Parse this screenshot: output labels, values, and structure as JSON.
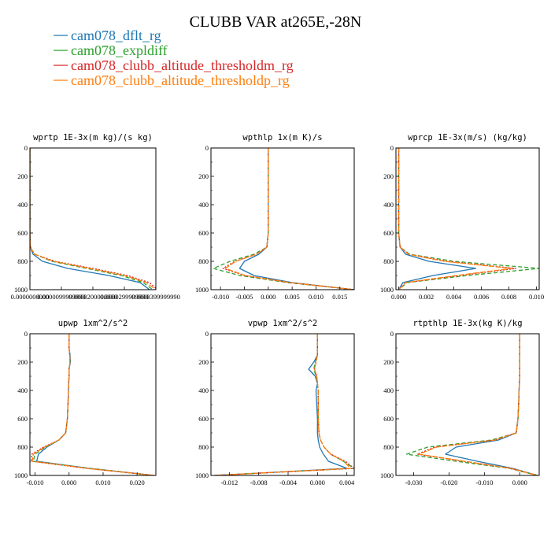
{
  "figure": {
    "title": "CLUBB VAR at265E,-28N",
    "legend": [
      {
        "name": "cam078_dflt_rg",
        "color": "#1f77b4",
        "dash": ""
      },
      {
        "name": "cam078_expldiff",
        "color": "#2ca02c",
        "dash": "5,3"
      },
      {
        "name": "cam078_clubb_altitude_thresholdm_rg",
        "color": "#d62728",
        "dash": "2,2"
      },
      {
        "name": "cam078_clubb_altitude_thresholdp_rg",
        "color": "#ff7f0e",
        "dash": "7,2"
      }
    ]
  },
  "chart_data": [
    {
      "type": "line",
      "title": "wprtp 1E-3x(m kg)/(s kg)",
      "xlim": [
        0.0,
        4e-05
      ],
      "ylim": [
        0,
        1000
      ],
      "y_reversed": true,
      "xticks": [
        0.0,
        1e-05,
        2e-05,
        3e-05,
        4e-05
      ],
      "xtick_labels": [
        "0.0000000000",
        "0.0000099999990",
        "0.0000200000000",
        "0.0000299999990",
        "0.0000399999990"
      ],
      "yticks": [
        0,
        200,
        400,
        600,
        800,
        1000
      ],
      "y": [
        0,
        100,
        200,
        300,
        400,
        500,
        600,
        700,
        750,
        800,
        850,
        900,
        950,
        1000
      ],
      "series": [
        {
          "name": "cam078_dflt_rg",
          "values": [
            0,
            0,
            0,
            0,
            0,
            0,
            0,
            1e-07,
            1e-06,
            4e-06,
            1.2e-05,
            2.5e-05,
            3.5e-05,
            3.8e-05
          ]
        },
        {
          "name": "cam078_expldiff",
          "values": [
            0,
            0,
            0,
            0,
            0,
            0,
            0,
            1e-07,
            1.5e-06,
            7e-06,
            1.8e-05,
            2.9e-05,
            3.6e-05,
            3.9e-05
          ]
        },
        {
          "name": "cam078_clubb_altitude_thresholdm_rg",
          "values": [
            0,
            0,
            0,
            0,
            0,
            0,
            0,
            1e-07,
            1.5e-06,
            8e-06,
            2e-05,
            3.1e-05,
            3.8e-05,
            4.05e-05
          ]
        },
        {
          "name": "cam078_clubb_altitude_thresholdp_rg",
          "values": [
            0,
            0,
            0,
            0,
            0,
            0,
            0,
            1e-07,
            1.5e-06,
            7.5e-06,
            1.9e-05,
            3e-05,
            3.7e-05,
            4e-05
          ]
        }
      ]
    },
    {
      "type": "line",
      "title": "wpthlp 1x(m K)/s",
      "xlim": [
        -0.012,
        0.018
      ],
      "ylim": [
        0,
        1000
      ],
      "y_reversed": true,
      "xticks": [
        -0.01,
        -0.005,
        0.0,
        0.005,
        0.01,
        0.015
      ],
      "xtick_labels": [
        "-0.010",
        "-0.005",
        "0.000",
        "0.005",
        "0.010",
        "0.015"
      ],
      "yticks": [
        0,
        200,
        400,
        600,
        800,
        1000
      ],
      "y": [
        0,
        100,
        200,
        300,
        400,
        500,
        600,
        700,
        750,
        800,
        850,
        900,
        950,
        1000
      ],
      "series": [
        {
          "name": "cam078_dflt_rg",
          "values": [
            0,
            0,
            0,
            0,
            0,
            0,
            0,
            -0.0003,
            -0.002,
            -0.005,
            -0.006,
            -0.003,
            0.005,
            0.018
          ]
        },
        {
          "name": "cam078_expldiff",
          "values": [
            0,
            0,
            0,
            0,
            0,
            0,
            0,
            -0.0003,
            -0.003,
            -0.008,
            -0.0115,
            -0.006,
            0.004,
            0.018
          ]
        },
        {
          "name": "cam078_clubb_altitude_thresholdm_rg",
          "values": [
            0,
            0,
            0,
            0,
            0,
            0,
            0,
            -0.0003,
            -0.0025,
            -0.007,
            -0.0095,
            -0.005,
            0.0045,
            0.018
          ]
        },
        {
          "name": "cam078_clubb_altitude_thresholdp_rg",
          "values": [
            0,
            0,
            0,
            0,
            0,
            0,
            0,
            -0.0003,
            -0.0025,
            -0.0068,
            -0.009,
            -0.0048,
            0.0045,
            0.018
          ]
        }
      ]
    },
    {
      "type": "line",
      "title": "wprcp 1E-3x(m/s) (kg/kg)",
      "xlim": [
        -0.0002,
        0.0102
      ],
      "ylim": [
        0,
        1000
      ],
      "y_reversed": true,
      "xticks": [
        0.0,
        0.002,
        0.004,
        0.006,
        0.008,
        0.01
      ],
      "xtick_labels": [
        "0.000",
        "0.002",
        "0.004",
        "0.006",
        "0.008",
        "0.010"
      ],
      "yticks": [
        0,
        200,
        400,
        600,
        800,
        1000
      ],
      "y": [
        0,
        100,
        200,
        300,
        400,
        500,
        600,
        700,
        750,
        800,
        850,
        900,
        950,
        1000
      ],
      "series": [
        {
          "name": "cam078_dflt_rg",
          "values": [
            0,
            0,
            0,
            0,
            0,
            0,
            0,
            0.0001,
            0.0005,
            0.0022,
            0.0056,
            0.0025,
            0.0003,
            0
          ]
        },
        {
          "name": "cam078_expldiff",
          "values": [
            0,
            0,
            0,
            0,
            0,
            0,
            0,
            0.0001,
            0.0008,
            0.004,
            0.0102,
            0.005,
            0.0006,
            0
          ]
        },
        {
          "name": "cam078_clubb_altitude_thresholdm_rg",
          "values": [
            0,
            0,
            0,
            0,
            0,
            0,
            0,
            0.0001,
            0.0007,
            0.0035,
            0.0085,
            0.0045,
            0.0005,
            0
          ]
        },
        {
          "name": "cam078_clubb_altitude_thresholdp_rg",
          "values": [
            0,
            0,
            0,
            0,
            0,
            0,
            0,
            0.0001,
            0.0007,
            0.0033,
            0.0082,
            0.0042,
            0.0005,
            0
          ]
        }
      ]
    },
    {
      "type": "line",
      "title": "upwp 1xm^2/s^2",
      "xlim": [
        -0.0115,
        0.0255
      ],
      "ylim": [
        0,
        1000
      ],
      "y_reversed": true,
      "xticks": [
        -0.01,
        0.0,
        0.01,
        0.02
      ],
      "xtick_labels": [
        "-0.010",
        "0.000",
        "0.010",
        "0.020"
      ],
      "yticks": [
        0,
        200,
        400,
        600,
        800,
        1000
      ],
      "y": [
        0,
        100,
        150,
        200,
        250,
        300,
        400,
        500,
        600,
        700,
        750,
        800,
        850,
        900,
        950,
        1000
      ],
      "series": [
        {
          "name": "cam078_dflt_rg",
          "values": [
            0,
            0,
            0.0003,
            0.0004,
            0,
            0,
            -0.0002,
            -0.0003,
            -0.0005,
            -0.001,
            -0.003,
            -0.0065,
            -0.009,
            -0.0095,
            0.006,
            0.025
          ]
        },
        {
          "name": "cam078_expldiff",
          "values": [
            0,
            0,
            0.0002,
            0.0003,
            0,
            0,
            -0.0002,
            -0.0003,
            -0.0005,
            -0.001,
            -0.003,
            -0.007,
            -0.01,
            -0.0105,
            0.006,
            0.025
          ]
        },
        {
          "name": "cam078_clubb_altitude_thresholdm_rg",
          "values": [
            0,
            0,
            0.0002,
            0.0003,
            0,
            0,
            -0.0002,
            -0.0003,
            -0.0005,
            -0.001,
            -0.003,
            -0.0075,
            -0.011,
            -0.011,
            0.005,
            0.025
          ]
        },
        {
          "name": "cam078_clubb_altitude_thresholdp_rg",
          "values": [
            0,
            0,
            0.0002,
            0.0003,
            0,
            0,
            -0.0002,
            -0.0003,
            -0.0005,
            -0.001,
            -0.003,
            -0.0072,
            -0.0105,
            -0.0108,
            0.0055,
            0.025
          ]
        }
      ]
    },
    {
      "type": "line",
      "title": "vpwp 1xm^2/s^2",
      "xlim": [
        -0.0145,
        0.005
      ],
      "ylim": [
        0,
        1000
      ],
      "y_reversed": true,
      "xticks": [
        -0.012,
        -0.008,
        -0.004,
        0.0,
        0.004
      ],
      "xtick_labels": [
        "-0.012",
        "-0.008",
        "-0.004",
        "0.000",
        "0.004"
      ],
      "yticks": [
        0,
        200,
        400,
        600,
        800,
        1000
      ],
      "y": [
        0,
        100,
        150,
        200,
        250,
        300,
        350,
        400,
        500,
        600,
        700,
        750,
        800,
        850,
        900,
        950,
        1000
      ],
      "series": [
        {
          "name": "cam078_dflt_rg",
          "values": [
            0,
            0,
            0,
            -0.0005,
            -0.0012,
            -0.0003,
            0,
            -0.0002,
            -0.0001,
            0,
            0,
            0.0001,
            0.0003,
            0.0008,
            0.0015,
            0.004,
            -0.014
          ]
        },
        {
          "name": "cam078_expldiff",
          "values": [
            0,
            0,
            0,
            -0.0003,
            -0.0005,
            -0.0002,
            0,
            0.0001,
            0.0001,
            0.0001,
            0.0002,
            0.0004,
            0.0009,
            0.0018,
            0.0035,
            0.005,
            -0.014
          ]
        },
        {
          "name": "cam078_clubb_altitude_thresholdm_rg",
          "values": [
            0,
            0,
            0,
            -0.0002,
            -0.0004,
            -0.0001,
            0,
            0.0001,
            0.0001,
            0.0001,
            0.0002,
            0.0004,
            0.0009,
            0.0018,
            0.0038,
            0.005,
            -0.014
          ]
        },
        {
          "name": "cam078_clubb_altitude_thresholdp_rg",
          "values": [
            0,
            0,
            0,
            -0.0002,
            -0.0004,
            -0.0001,
            0,
            0.0001,
            0.0001,
            0.0001,
            0.0002,
            0.0004,
            0.0009,
            0.0018,
            0.0036,
            0.0045,
            -0.014
          ]
        }
      ]
    },
    {
      "type": "line",
      "title": "rtpthlp 1E-3x(kg K)/kg",
      "xlim": [
        -0.035,
        0.0055
      ],
      "ylim": [
        0,
        1000
      ],
      "y_reversed": true,
      "xticks": [
        -0.03,
        -0.02,
        -0.01,
        0.0
      ],
      "xtick_labels": [
        "-0.030",
        "-0.020",
        "-0.010",
        "0.000"
      ],
      "yticks": [
        0,
        200,
        400,
        600,
        800,
        1000
      ],
      "y": [
        0,
        100,
        200,
        300,
        400,
        500,
        600,
        700,
        750,
        800,
        850,
        900,
        950,
        1000
      ],
      "series": [
        {
          "name": "cam078_dflt_rg",
          "values": [
            0,
            0,
            0,
            0,
            -0.0002,
            -0.0003,
            -0.0005,
            -0.001,
            -0.006,
            -0.018,
            -0.021,
            -0.012,
            -0.002,
            0.005
          ]
        },
        {
          "name": "cam078_expldiff",
          "values": [
            0,
            0,
            0,
            0,
            -0.0002,
            -0.0003,
            -0.0005,
            -0.001,
            -0.008,
            -0.026,
            -0.032,
            -0.018,
            -0.003,
            0.005
          ]
        },
        {
          "name": "cam078_clubb_altitude_thresholdm_rg",
          "values": [
            0,
            0,
            0,
            0,
            -0.0002,
            -0.0003,
            -0.0005,
            -0.001,
            -0.007,
            -0.024,
            -0.029,
            -0.016,
            -0.0025,
            0.005
          ]
        },
        {
          "name": "cam078_clubb_altitude_thresholdp_rg",
          "values": [
            0,
            0,
            0,
            0,
            -0.0002,
            -0.0003,
            -0.0005,
            -0.001,
            -0.007,
            -0.0235,
            -0.0285,
            -0.0155,
            -0.0025,
            0.005
          ]
        }
      ]
    }
  ]
}
